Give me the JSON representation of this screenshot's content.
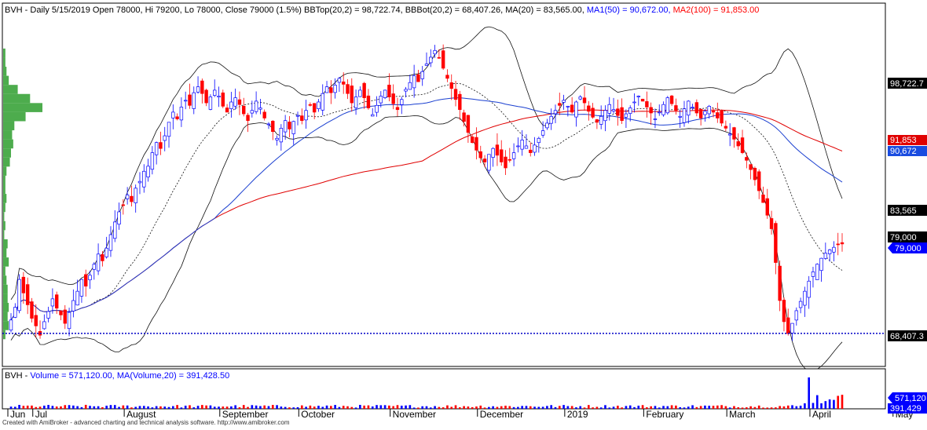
{
  "chart_data": [
    {
      "type": "candlestick",
      "header": {
        "symbol": "BVH",
        "main_text": " - Daily 5/15/2019 Open 78000, Hi 79200, Lo 78000, Close 79000 (1.5%) BBTop(20,2) = 98,722.74, BBBot(20,2) = 68,407.26, MA(20) = 83,565.00,",
        "ma1_text": " MA1(50) = 90,672.00,",
        "ma2_text": " MA2(100) = 91,853.00"
      },
      "ylim": [
        64500,
        107500
      ],
      "y_labels": {
        "bbtop": "98,722.7",
        "ma2": "91,853",
        "ma1": "90,672",
        "ma20": "83,565",
        "close": "79,000",
        "close_box": "79,000",
        "bbbot": "68,407.3"
      },
      "reference_line": 68407.26,
      "months": [
        "Jun",
        "Jul",
        "August",
        "September",
        "October",
        "November",
        "December",
        "2019",
        "February",
        "March",
        "April",
        "May"
      ],
      "month_starts": [
        0,
        6,
        28,
        51,
        70,
        92,
        113,
        134,
        153,
        173,
        193,
        213
      ],
      "closes": [
        70000,
        71500,
        74800,
        73200,
        71800,
        70200,
        69300,
        68200,
        69800,
        71000,
        72500,
        71400,
        70600,
        69600,
        70900,
        72300,
        73400,
        74800,
        74000,
        75300,
        76600,
        77800,
        77000,
        78500,
        80100,
        81600,
        82800,
        83600,
        84800,
        84000,
        85600,
        86400,
        87600,
        88200,
        89800,
        91000,
        90300,
        91800,
        93400,
        94600,
        93800,
        95200,
        96000,
        95400,
        96900,
        97600,
        96800,
        95700,
        96400,
        97200,
        96500,
        95300,
        94600,
        95800,
        96300,
        95500,
        94400,
        93600,
        94800,
        95900,
        95100,
        93900,
        93200,
        92300,
        91500,
        92700,
        93600,
        92600,
        93500,
        94200,
        93600,
        94800,
        95400,
        94600,
        95800,
        96800,
        97600,
        96900,
        97800,
        98600,
        97900,
        96800,
        95700,
        96400,
        97200,
        96300,
        95100,
        94300,
        95400,
        96500,
        97200,
        96400,
        95600,
        94900,
        96100,
        97300,
        98100,
        98900,
        98200,
        99400,
        100300,
        101100,
        101900,
        101000,
        99800,
        98600,
        97400,
        96100,
        94900,
        93500,
        92200,
        91000,
        90100,
        89200,
        88700,
        89600,
        90300,
        89500,
        88700,
        88000,
        88900,
        89800,
        90600,
        91300,
        90600,
        89800,
        90700,
        91500,
        92400,
        93300,
        94100,
        94800,
        95400,
        96000,
        95300,
        94600,
        95800,
        96400,
        95700,
        94700,
        94000,
        93400,
        94100,
        94800,
        95500,
        94900,
        94200,
        93600,
        94400,
        95100,
        95800,
        96500,
        95900,
        95200,
        94500,
        93800,
        94600,
        95500,
        96300,
        95600,
        94800,
        94100,
        95000,
        95900,
        95200,
        94500,
        93900,
        94700,
        95300,
        94600,
        93900,
        93300,
        92700,
        92000,
        91400,
        90600,
        89800,
        88900,
        87800,
        86600,
        85300,
        83900,
        82400,
        80800,
        76800,
        72300,
        69800,
        68400,
        69600,
        71100,
        72200,
        73400,
        74600,
        75700,
        76600,
        77300,
        77900,
        78300,
        78600,
        78900,
        79000
      ],
      "volume": {
        "header": {
          "symbol": "BVH",
          "text1": " - ",
          "vol_text": "Volume = 571,120.00,",
          "text2": " ",
          "mavol_text": "MA(Volume,20) = 391,428.50"
        },
        "labels": {
          "vol": "571,120",
          "mavol": "391,429"
        }
      }
    }
  ],
  "footer_text": "Created with AmiBroker - advanced charting and technical analysis software. http://www.amibroker.com"
}
